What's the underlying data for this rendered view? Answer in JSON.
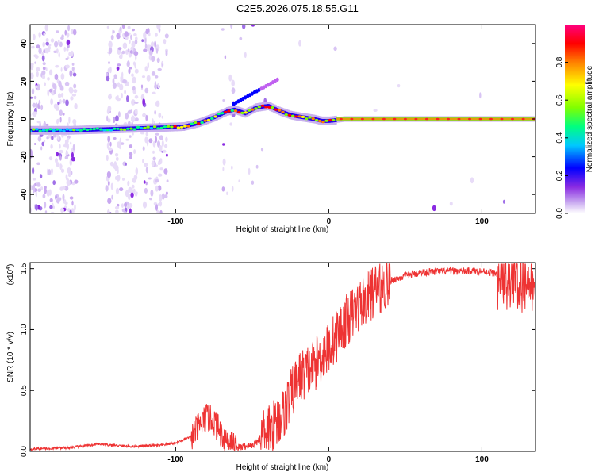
{
  "title": "C2E5.2026.075.18.55.G11",
  "chart_data": [
    {
      "type": "heatmap",
      "name": "spectrogram",
      "xlabel": "Height of straight line (km)",
      "ylabel": "Frequency (Hz)",
      "xlim": [
        -195,
        135
      ],
      "ylim": [
        -50,
        50
      ],
      "x_ticks": [
        -100,
        0,
        100
      ],
      "y_ticks": [
        -40,
        -20,
        0,
        20,
        40
      ],
      "colorbar": {
        "label": "Normalized spectral amplitude",
        "range": [
          0,
          1
        ],
        "ticks": [
          "0.0",
          "0.2",
          "0.4",
          "0.6",
          "0.8"
        ],
        "colors": [
          "#ffffff",
          "#c8a8f0",
          "#8a2be2",
          "#0000ff",
          "#00c8ff",
          "#00ff80",
          "#80ff00",
          "#ffff00",
          "#ff8000",
          "#ff0000",
          "#ff0080"
        ]
      },
      "ridge": {
        "x": [
          -195,
          -170,
          -150,
          -130,
          -110,
          -95,
          -85,
          -75,
          -67,
          -62,
          -55,
          -48,
          -40,
          -32,
          -25,
          -18,
          -10,
          -5,
          0,
          10,
          20,
          40,
          60,
          80,
          100,
          120,
          135
        ],
        "y": [
          -6,
          -6,
          -5.5,
          -5,
          -4.5,
          -4,
          -2,
          1,
          4,
          5,
          3,
          6,
          7,
          4,
          2,
          1,
          0,
          -1,
          -1,
          0,
          0,
          0,
          0,
          0,
          0,
          0,
          0
        ]
      }
    },
    {
      "type": "line",
      "name": "snr",
      "xlabel": "Height of straight line (km)",
      "ylabel": "SNR (10 * v/v)",
      "yscale_label": "(x10",
      "yscale_exp": "4",
      "yscale_close": ")",
      "xlim": [
        -195,
        135
      ],
      "ylim": [
        0,
        1.55
      ],
      "x_ticks": [
        -100,
        0,
        100
      ],
      "y_ticks": [
        "0.0",
        "0.5",
        "1.0",
        "1.5"
      ],
      "color": "#ee3333",
      "series": {
        "name": "SNR",
        "x": [
          -195,
          -170,
          -150,
          -140,
          -130,
          -110,
          -100,
          -90,
          -80,
          -75,
          -70,
          -65,
          -60,
          -50,
          -40,
          -30,
          -25,
          -20,
          -10,
          0,
          10,
          20,
          30,
          40,
          50,
          60,
          80,
          100,
          120,
          135
        ],
        "y": [
          0.02,
          0.03,
          0.06,
          0.05,
          0.04,
          0.05,
          0.07,
          0.12,
          0.28,
          0.25,
          0.14,
          0.08,
          0.03,
          0.05,
          0.15,
          0.3,
          0.45,
          0.6,
          0.7,
          0.85,
          1.05,
          1.2,
          1.32,
          1.4,
          1.44,
          1.47,
          1.48,
          1.48,
          1.44,
          1.42
        ]
      }
    }
  ]
}
